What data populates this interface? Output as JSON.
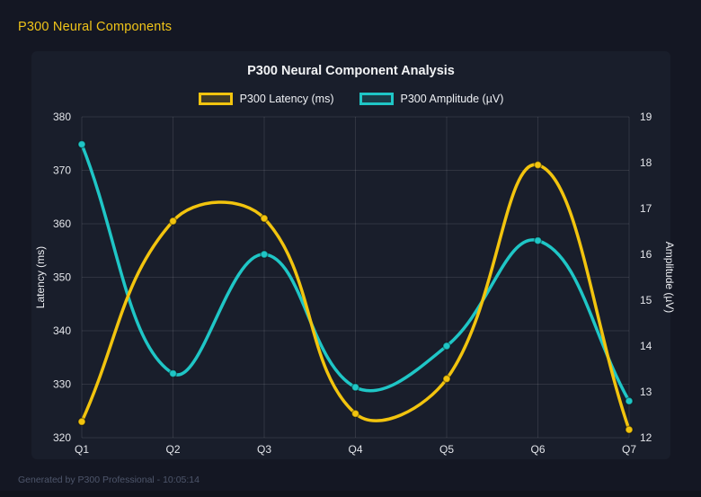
{
  "page": {
    "title": "P300 Neural Components",
    "footer": "Generated by P300 Professional - 10:05:14"
  },
  "colors": {
    "background": "#141723",
    "card": "#191e2b",
    "latency": "#f2c40e",
    "amplitude": "#1fc6c6",
    "grid": "rgba(255,255,255,0.10)",
    "tick_text": "#e3e5ea",
    "axis_title_text": "#eceef2",
    "title_text": "#f2f3f5",
    "page_title_text": "#f0c419",
    "footer_text": "#4e566b"
  },
  "chart_data": {
    "type": "line",
    "title": "P300 Neural Component Analysis",
    "categories": [
      "Q1",
      "Q2",
      "Q3",
      "Q4",
      "Q5",
      "Q6",
      "Q7"
    ],
    "series": [
      {
        "name": "P300 Latency (ms)",
        "axis": "left",
        "color": "#f2c40e",
        "values": [
          323,
          360.5,
          361,
          324.5,
          331,
          371,
          321.5
        ]
      },
      {
        "name": "P300 Amplitude (µV)",
        "axis": "right",
        "color": "#1fc6c6",
        "values": [
          18.4,
          13.4,
          16,
          13.1,
          14,
          16.3,
          12.8
        ]
      }
    ],
    "left_axis": {
      "label": "Latency (ms)",
      "min": 320,
      "max": 380,
      "ticks": [
        320,
        330,
        340,
        350,
        360,
        370,
        380
      ]
    },
    "right_axis": {
      "label": "Amplitude (µV)",
      "min": 12,
      "max": 19,
      "ticks": [
        12,
        13,
        14,
        15,
        16,
        17,
        18,
        19
      ]
    },
    "legend_position": "top",
    "grid": true,
    "smooth": true,
    "line_tension": 0.4
  }
}
